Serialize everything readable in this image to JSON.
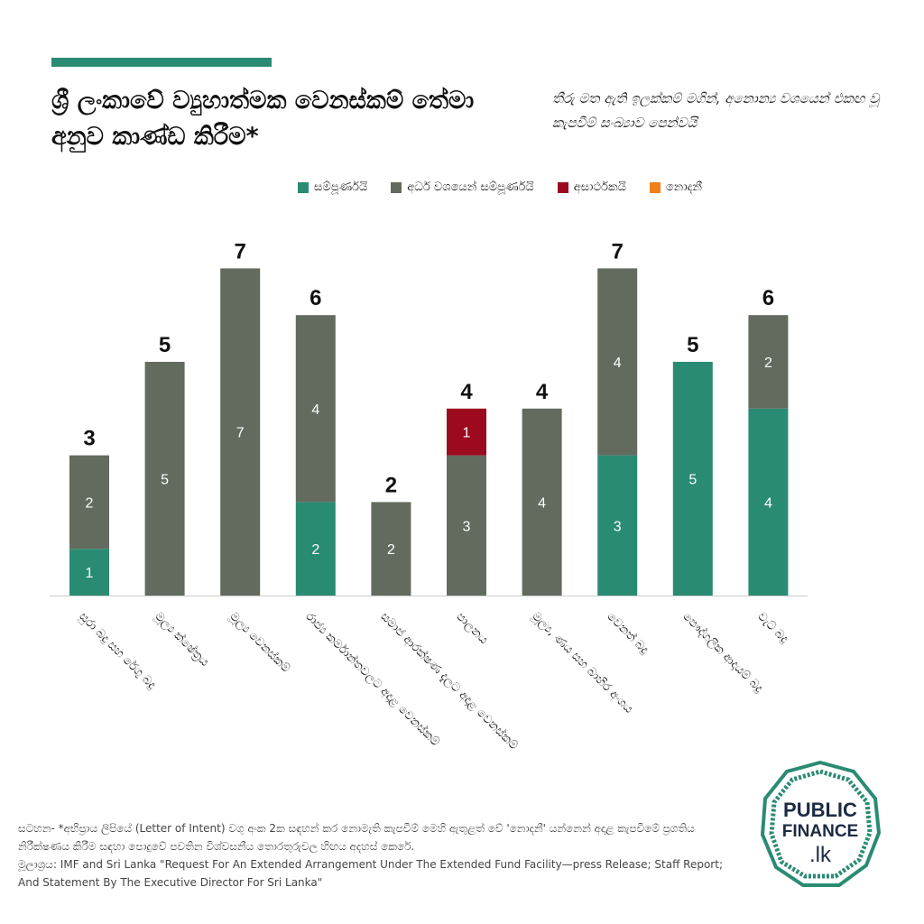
{
  "header": {
    "title": "ශ්‍රී ලංකාවේ ව්‍යුහාත්මක වෙනස්කම් තේමා අනුව කාණ්ඩ කිරීම*",
    "subtitle": "තීරු මත ඇති ඉලක්කම් මගින්, අනොන්‍ය වශයෙන් එකඟ වූ කැපවීම් සංඛ්‍යාව පෙන්වයි"
  },
  "colors": {
    "accent": "#2a8b73",
    "completed": "#2a8b73",
    "partial": "#636b5f",
    "unsatisfactory": "#9b0a1f",
    "unknown": "#f07f1a"
  },
  "chart_data": {
    "type": "bar",
    "stacked": true,
    "title": "ශ්‍රී ලංකාවේ ව්‍යුහාත්මක වෙනස්කම් තේමා අනුව කාණ්ඩ කිරීම*",
    "legend_position": "top-right",
    "grid": false,
    "ylim": [
      0,
      7
    ],
    "categories": [
      "සුරා බදු සහ රේගු බදු",
      "මූල්‍ය ක්ෂේත්‍රය",
      "මූල්‍ය වෙනස්කම්",
      "රාජ්‍ය කර්මාන්තවලට අදාළ වෙනස්කම්",
      "සමාජ ආරක්ෂණ දැලට අදාළ වෙනස්කම්",
      "පාලනය",
      "මූල්‍ය, ණය සහ බාහිර අංශය",
      "වෙනත් බදු",
      "පෞද්ගලික ආදායම් බදු",
      "වැට් බදු"
    ],
    "series": [
      {
        "name": "සම්පූර්ණයි",
        "key": "completed",
        "values": [
          1,
          0,
          0,
          2,
          0,
          0,
          0,
          3,
          5,
          4
        ]
      },
      {
        "name": "අර්ධ වශයෙන් සම්පූර්ණයි",
        "key": "partial",
        "values": [
          2,
          5,
          7,
          4,
          2,
          3,
          4,
          4,
          0,
          2
        ]
      },
      {
        "name": "අසාර්ථකයි",
        "key": "unsatisfactory",
        "values": [
          0,
          0,
          0,
          0,
          0,
          1,
          0,
          0,
          0,
          0
        ]
      },
      {
        "name": "නොදනී",
        "key": "unknown",
        "values": [
          0,
          0,
          0,
          0,
          0,
          0,
          0,
          0,
          0,
          0
        ]
      }
    ],
    "totals": [
      3,
      5,
      7,
      6,
      2,
      4,
      4,
      7,
      5,
      6
    ]
  },
  "notes": {
    "note": "සටහන- *අභිප්‍රාය ලිපියේ (Letter of Intent) වගු අංක 2ක සඳහන් කර නොමැති කැපවීම් මෙහි ඇතුළත් වේ 'නොදනී' යන්නෙන් අදාළ කැපවීමේ ප්‍රගතිය නිරීක්ෂණය කිරීම සඳහා පොදුවේ පවතින විශ්වසනීය තොරතුරුවල හිඟය අදහස් කෙරේ.",
    "source": "මූලාශ්‍රය: IMF and Sri Lanka \"Request For An Extended Arrangement Under The Extended Fund Facility—press Release; Staff Report; And Statement By The Executive Director For Sri Lanka\""
  },
  "logo": {
    "line1": "PUBLIC",
    "line2": "FINANCE",
    "line3": ".lk"
  }
}
